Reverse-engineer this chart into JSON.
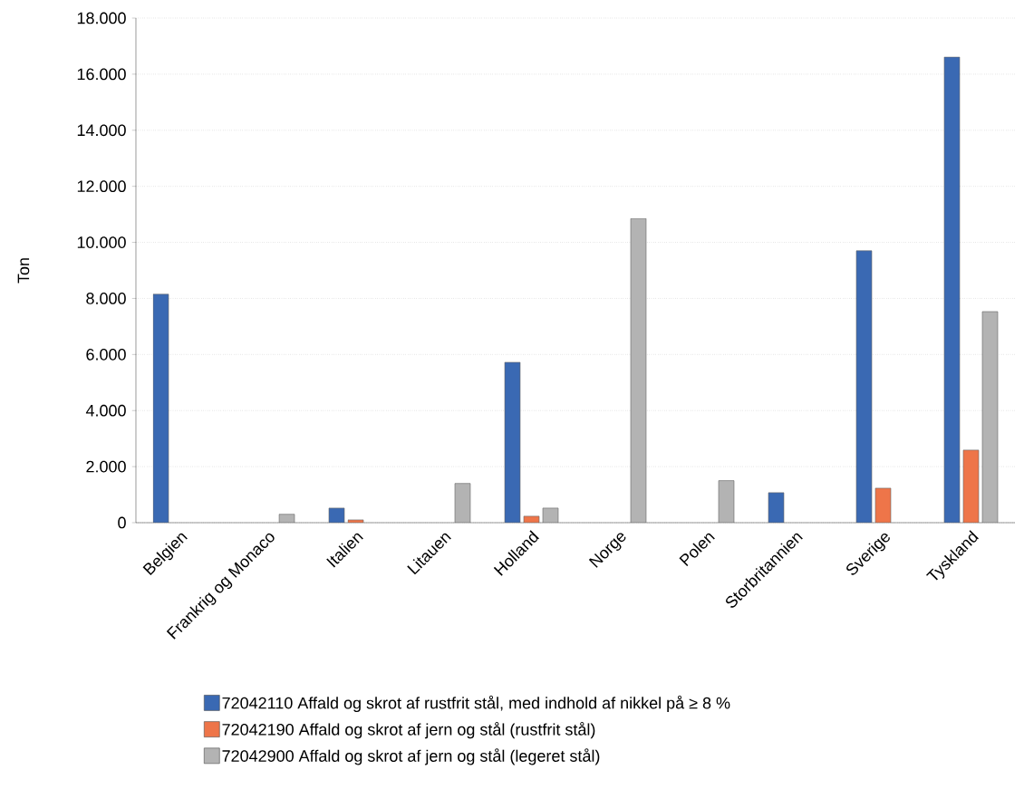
{
  "chart_data": {
    "type": "bar",
    "ylabel": "Ton",
    "categories": [
      "Belgien",
      "Frankrig og Monaco",
      "Italien",
      "Litauen",
      "Holland",
      "Norge",
      "Polen",
      "Storbritannien",
      "Sverige",
      "Tyskland"
    ],
    "series": [
      {
        "name": "72042110 Affald og skrot af rustfrit stål, med indhold af nikkel på ≥ 8 %",
        "color": "#3a69b3",
        "values": [
          8150,
          null,
          520,
          null,
          5720,
          null,
          null,
          1070,
          9700,
          16610
        ]
      },
      {
        "name": "72042190 Affald og skrot af jern og stål (rustfrit stål)",
        "color": "#ee7549",
        "values": [
          null,
          null,
          100,
          null,
          230,
          null,
          null,
          null,
          1230,
          2590
        ]
      },
      {
        "name": "72042900 Affald og skrot af jern og stål (legeret stål)",
        "color": "#b3b3b3",
        "values": [
          null,
          300,
          null,
          1400,
          520,
          10850,
          1500,
          null,
          null,
          7530
        ]
      }
    ],
    "ylim": [
      0,
      18000
    ],
    "yticks": [
      0,
      {
        "value": 2000,
        "label": "2.000"
      },
      {
        "value": 4000,
        "label": "4.000"
      },
      {
        "value": 6000,
        "label": "6.000"
      },
      {
        "value": 8000,
        "label": "8.000"
      },
      {
        "value": 10000,
        "label": "10.000"
      },
      {
        "value": 12000,
        "label": "12.000"
      },
      {
        "value": 14000,
        "label": "14.000"
      },
      {
        "value": 16000,
        "label": "16.000"
      },
      {
        "value": 18000,
        "label": "18.000"
      }
    ],
    "grid": "y",
    "legend": "bottom"
  }
}
